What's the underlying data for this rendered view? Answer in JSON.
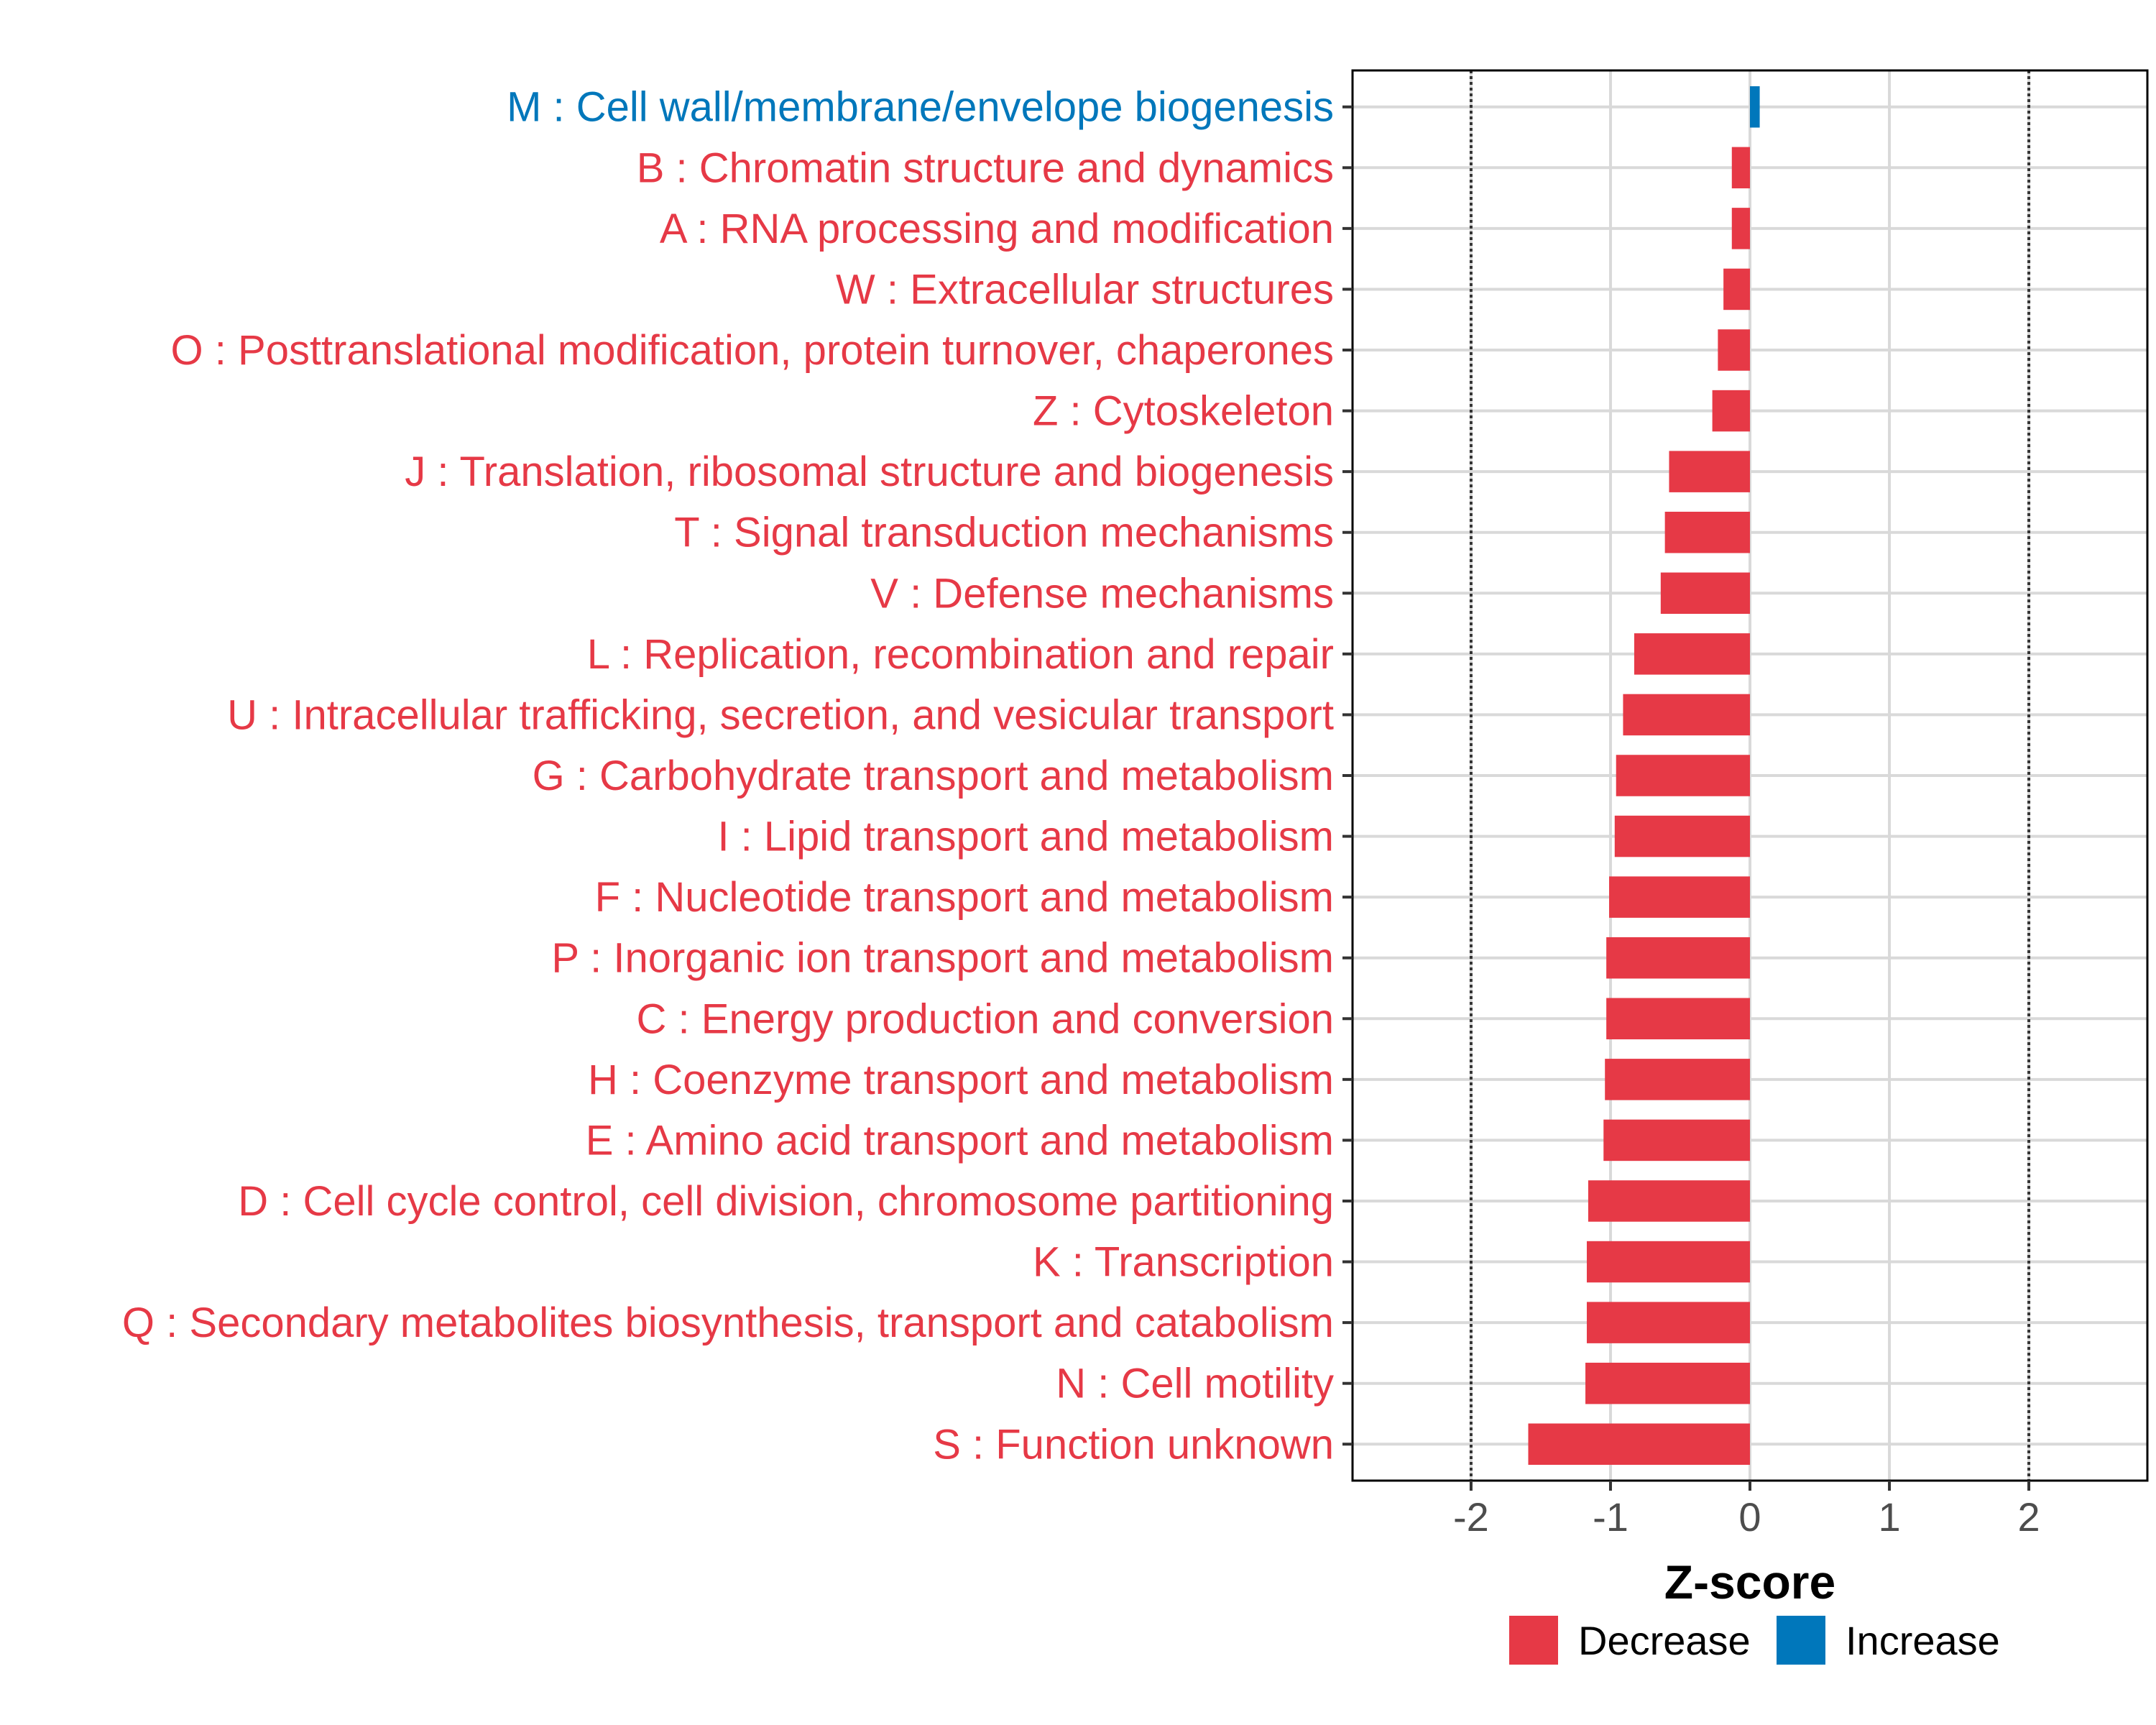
{
  "chart_data": {
    "type": "bar",
    "orientation": "horizontal",
    "xlabel": "Z-score",
    "ylabel": "",
    "xlim": [
      -2.85,
      2.85
    ],
    "xticks": [
      -2,
      -1,
      0,
      1,
      2
    ],
    "xtick_labels": [
      "-2",
      "-1",
      "0",
      "1",
      "2"
    ],
    "reference_lines": [
      -2,
      2
    ],
    "grid": true,
    "legend_position": "bottom",
    "legend": [
      {
        "label": "Decrease",
        "color": "#e63946"
      },
      {
        "label": "Increase",
        "color": "#0077bb"
      }
    ],
    "bars": [
      {
        "label": "M : Cell wall/membrane/envelope biogenesis",
        "value": 0.07,
        "direction": "Increase"
      },
      {
        "label": "B : Chromatin structure and dynamics",
        "value": -0.13,
        "direction": "Decrease"
      },
      {
        "label": "A : RNA processing and modification",
        "value": -0.13,
        "direction": "Decrease"
      },
      {
        "label": "W : Extracellular structures",
        "value": -0.19,
        "direction": "Decrease"
      },
      {
        "label": "O : Posttranslational modification, protein turnover, chaperones",
        "value": -0.23,
        "direction": "Decrease"
      },
      {
        "label": "Z : Cytoskeleton",
        "value": -0.27,
        "direction": "Decrease"
      },
      {
        "label": "J : Translation, ribosomal structure and biogenesis",
        "value": -0.58,
        "direction": "Decrease"
      },
      {
        "label": "T : Signal transduction mechanisms",
        "value": -0.61,
        "direction": "Decrease"
      },
      {
        "label": "V : Defense mechanisms",
        "value": -0.64,
        "direction": "Decrease"
      },
      {
        "label": "L : Replication, recombination and repair",
        "value": -0.83,
        "direction": "Decrease"
      },
      {
        "label": "U : Intracellular trafficking, secretion, and vesicular transport",
        "value": -0.91,
        "direction": "Decrease"
      },
      {
        "label": "G : Carbohydrate transport and metabolism",
        "value": -0.96,
        "direction": "Decrease"
      },
      {
        "label": "I : Lipid transport and metabolism",
        "value": -0.97,
        "direction": "Decrease"
      },
      {
        "label": "F : Nucleotide transport and metabolism",
        "value": -1.01,
        "direction": "Decrease"
      },
      {
        "label": "P : Inorganic ion transport and metabolism",
        "value": -1.03,
        "direction": "Decrease"
      },
      {
        "label": "C : Energy production and conversion",
        "value": -1.03,
        "direction": "Decrease"
      },
      {
        "label": "H : Coenzyme transport and metabolism",
        "value": -1.04,
        "direction": "Decrease"
      },
      {
        "label": "E : Amino acid transport and metabolism",
        "value": -1.05,
        "direction": "Decrease"
      },
      {
        "label": "D : Cell cycle control, cell division, chromosome partitioning",
        "value": -1.16,
        "direction": "Decrease"
      },
      {
        "label": "K : Transcription",
        "value": -1.17,
        "direction": "Decrease"
      },
      {
        "label": "Q : Secondary metabolites biosynthesis, transport and catabolism",
        "value": -1.17,
        "direction": "Decrease"
      },
      {
        "label": "N : Cell motility",
        "value": -1.18,
        "direction": "Decrease"
      },
      {
        "label": "S : Function unknown",
        "value": -1.59,
        "direction": "Decrease"
      }
    ]
  }
}
